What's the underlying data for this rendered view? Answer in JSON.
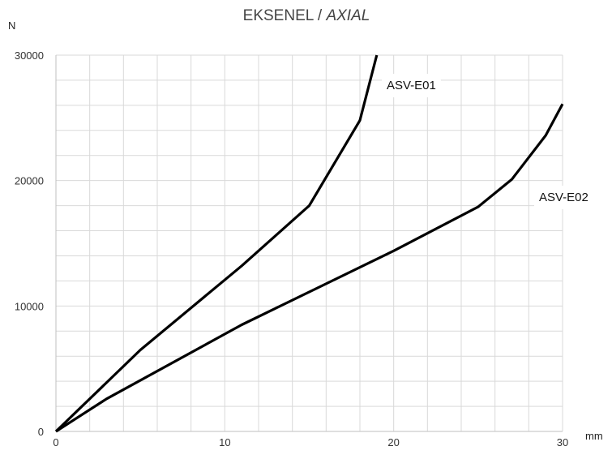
{
  "chart_data": {
    "type": "line",
    "title": "EKSENEL / ",
    "title_italic": "AXIAL",
    "xlabel": "mm",
    "ylabel": "N",
    "xlim": [
      0,
      30
    ],
    "ylim": [
      0,
      30000
    ],
    "x_ticks": [
      0,
      10,
      20,
      30
    ],
    "y_ticks": [
      0,
      10000,
      20000,
      30000
    ],
    "x_tick_labels": [
      "0",
      "10",
      "20",
      "30"
    ],
    "y_tick_labels": [
      "0",
      "10000",
      "20000",
      "30000"
    ],
    "grid": true,
    "line_color": "#000000",
    "grid_color": "#d9d9d9",
    "series": [
      {
        "name": "ASV-E01",
        "x": [
          0,
          5,
          11,
          15,
          18,
          19
        ],
        "y": [
          0,
          6500,
          13200,
          18000,
          24800,
          30000
        ]
      },
      {
        "name": "ASV-E02",
        "x": [
          0,
          3,
          11,
          20,
          25,
          27,
          29,
          30
        ],
        "y": [
          0,
          2600,
          8500,
          14400,
          17900,
          20100,
          23600,
          26100
        ]
      }
    ]
  }
}
